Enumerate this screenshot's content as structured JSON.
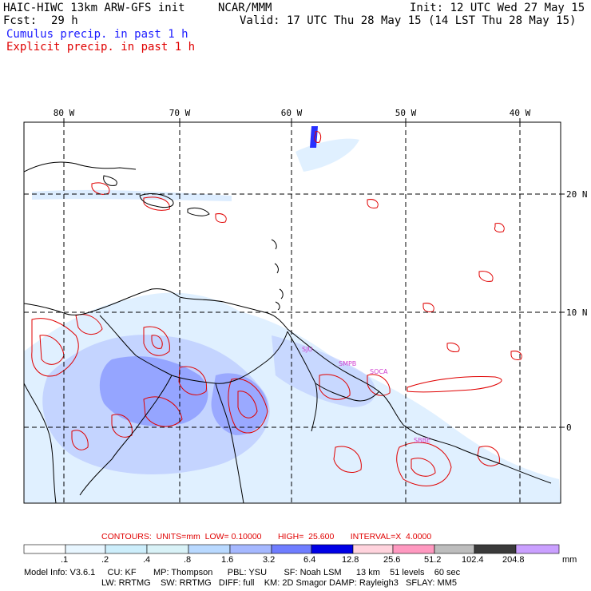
{
  "header": {
    "title_left": "HAIC-HIWC 13km ARW-GFS init",
    "title_center": "NCAR/MMM",
    "init": "Init: 12 UTC Wed 27 May 15",
    "fcst_label": "Fcst:",
    "fcst_value": "29 h",
    "valid": "Valid: 17 UTC Thu 28 May 15 (14 LST Thu 28 May 15)",
    "cumulus": "Cumulus precip. in past 1 h",
    "explicit": "Explicit precip. in past 1 h"
  },
  "map": {
    "lon_labels": [
      "80 W",
      "70 W",
      "60 W",
      "50 W",
      "40 W"
    ],
    "lat_labels": [
      "20 N",
      "10 N",
      "0"
    ],
    "stations": [
      "SJU",
      "SMPB",
      "SOCA",
      "SBBE"
    ],
    "colors": {
      "cumulus": "#3a4dff",
      "explicit": "#e00000",
      "grid": "#000000"
    }
  },
  "contours": {
    "text": "CONTOURS:  UNITS=mm  LOW= 0.10000       HIGH=  25.600       INTERVAL=X  4.0000"
  },
  "colorbar": {
    "labels": [
      ".1",
      ".2",
      ".4",
      ".8",
      "1.6",
      "3.2",
      "6.4",
      "12.8",
      "25.6",
      "51.2",
      "102.4",
      "204.8"
    ],
    "unit": "mm",
    "colors": [
      "#ffffff",
      "#e8f6ff",
      "#cdeefb",
      "#d9f2f7",
      "#b9d9ff",
      "#a5b8ff",
      "#6f7dff",
      "#2830ff",
      "#0000e6",
      "#ffd3dd",
      "#ff99c0",
      "#bdbdbd",
      "#3a3a3a",
      "#caa0ff"
    ]
  },
  "model_info": {
    "line1": "Model Info: V3.6.1     CU: KF       MP: Thompson      PBL: YSU       SF: Noah LSM      13 km    51 levels    60 sec",
    "line2": "LW: RRTMG    SW: RRTMG   DIFF: full    KM: 2D Smagor DAMP: Rayleigh3   SFLAY: MM5"
  }
}
